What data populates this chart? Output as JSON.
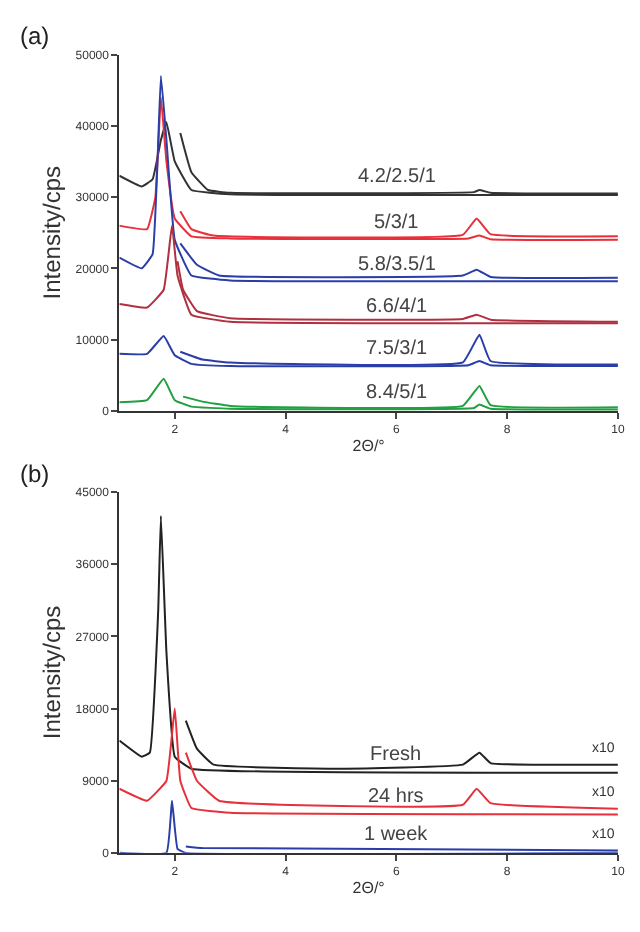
{
  "chart_data": [
    {
      "type": "line",
      "title": "(a)",
      "xlabel": "2Θ/°",
      "ylabel": "Intensity/cps",
      "xlim": [
        1,
        10
      ],
      "xticks": [
        2,
        4,
        6,
        8,
        10
      ],
      "ylim": [
        0,
        50000
      ],
      "yticks": [
        0,
        10000,
        20000,
        30000,
        40000,
        50000
      ],
      "legend": false,
      "marker": "none",
      "line_style": "solid",
      "series": [
        {
          "name": "4.2/2.5/1",
          "color": "#333333",
          "x": [
            1,
            1.4,
            1.6,
            1.75,
            1.85,
            2.0,
            2.3,
            3,
            10
          ],
          "values": [
            33000,
            31500,
            32500,
            38000,
            40500,
            35000,
            31000,
            30400,
            30300
          ]
        },
        {
          "color": "#333333",
          "x": [
            2.1,
            2.3,
            2.6,
            3,
            7.4,
            7.5,
            7.7,
            10
          ],
          "values": [
            39000,
            33500,
            31000,
            30600,
            30700,
            31000,
            30600,
            30500
          ]
        },
        {
          "name": "5/3/1",
          "color": "#e8303a",
          "x": [
            1,
            1.5,
            1.65,
            1.75,
            1.85,
            2.0,
            2.3,
            3,
            7.3,
            7.5,
            7.7,
            10
          ],
          "values": [
            26000,
            25500,
            30000,
            44000,
            35000,
            27000,
            24500,
            24200,
            24200,
            24600,
            24100,
            24000
          ]
        },
        {
          "color": "#e8303a",
          "x": [
            2.1,
            2.3,
            2.7,
            7.2,
            7.45,
            7.7,
            10
          ],
          "values": [
            28000,
            25500,
            24600,
            24700,
            27000,
            24800,
            24500
          ]
        },
        {
          "name": "5.8/3.5/1",
          "color": "#2a3ea8",
          "x": [
            1,
            1.4,
            1.6,
            1.75,
            1.85,
            2.0,
            2.3,
            3,
            10
          ],
          "values": [
            21500,
            20000,
            22000,
            47000,
            38000,
            24000,
            19000,
            18300,
            18200
          ]
        },
        {
          "color": "#2a3ea8",
          "x": [
            2.1,
            2.4,
            2.8,
            7.2,
            7.45,
            7.7,
            10
          ],
          "values": [
            23500,
            20500,
            19000,
            19000,
            19800,
            18800,
            18700
          ]
        },
        {
          "name": "6.6/4/1",
          "color": "#b03040",
          "x": [
            1,
            1.5,
            1.8,
            1.95,
            2.05,
            2.3,
            3,
            10
          ],
          "values": [
            15000,
            14500,
            17000,
            26000,
            19000,
            13500,
            12500,
            12300
          ]
        },
        {
          "color": "#b03040",
          "x": [
            2.05,
            2.15,
            2.4,
            3,
            7.2,
            7.45,
            7.7,
            10
          ],
          "values": [
            21000,
            17000,
            14000,
            13000,
            12900,
            13500,
            12800,
            12500
          ]
        },
        {
          "name": "7.5/3/1",
          "color": "#2a3ea8",
          "x": [
            1,
            1.5,
            1.8,
            2.0,
            2.3,
            3,
            7.3,
            7.5,
            7.7,
            10
          ],
          "values": [
            8000,
            8000,
            10500,
            7800,
            6600,
            6300,
            6400,
            7000,
            6400,
            6300
          ]
        },
        {
          "color": "#2a3ea8",
          "x": [
            2.1,
            2.5,
            3,
            7.2,
            7.5,
            7.7,
            10
          ],
          "values": [
            8300,
            7200,
            6800,
            6800,
            10700,
            7000,
            6500
          ]
        },
        {
          "name": "8.4/5/1",
          "color": "#20a040",
          "x": [
            1,
            1.5,
            1.8,
            2.0,
            2.3,
            3,
            7.4,
            7.5,
            7.7,
            10
          ],
          "values": [
            1200,
            1500,
            4500,
            1500,
            600,
            300,
            400,
            900,
            300,
            200
          ]
        },
        {
          "color": "#20a040",
          "x": [
            2.15,
            2.5,
            3,
            7.2,
            7.5,
            7.7,
            10
          ],
          "values": [
            2000,
            1300,
            700,
            700,
            3500,
            800,
            500
          ]
        }
      ]
    },
    {
      "type": "line",
      "title": "(b)",
      "xlabel": "2Θ/°",
      "ylabel": "Intensity/cps",
      "xlim": [
        1,
        10
      ],
      "xticks": [
        2,
        4,
        6,
        8,
        10
      ],
      "ylim": [
        0,
        45000
      ],
      "yticks": [
        0,
        9000,
        18000,
        27000,
        36000,
        45000
      ],
      "legend": false,
      "marker": "none",
      "line_style": "solid",
      "annotations": [
        "x10",
        "x10",
        "x10"
      ],
      "series": [
        {
          "name": "Fresh",
          "color": "#222222",
          "x": [
            1,
            1.4,
            1.55,
            1.7,
            1.75,
            1.85,
            2.0,
            2.3,
            10
          ],
          "values": [
            14000,
            12000,
            12500,
            30000,
            42000,
            25000,
            12000,
            10500,
            10000
          ]
        },
        {
          "color": "#222222",
          "x": [
            2.2,
            2.4,
            2.7,
            5,
            7.2,
            7.5,
            7.7,
            10
          ],
          "values": [
            16500,
            13000,
            11000,
            10500,
            11000,
            12500,
            11200,
            11000
          ]
        },
        {
          "name": "24 hrs",
          "color": "#e8303a",
          "x": [
            1,
            1.5,
            1.85,
            2.0,
            2.1,
            2.3,
            3,
            10
          ],
          "values": [
            8000,
            6500,
            9000,
            18000,
            9000,
            5600,
            5000,
            4800
          ]
        },
        {
          "color": "#e8303a",
          "x": [
            2.2,
            2.4,
            2.8,
            7.2,
            7.45,
            7.7,
            10
          ],
          "values": [
            12500,
            9000,
            6500,
            6000,
            8000,
            6200,
            5500
          ]
        },
        {
          "name": "1 week",
          "color": "#2a3ea8",
          "x": [
            1,
            1.85,
            1.95,
            2.05,
            2.2,
            10
          ],
          "values": [
            0,
            0,
            6500,
            500,
            0,
            0
          ]
        },
        {
          "color": "#2a3ea8",
          "x": [
            2.2,
            2.5,
            10
          ],
          "values": [
            800,
            600,
            300
          ]
        }
      ]
    }
  ]
}
